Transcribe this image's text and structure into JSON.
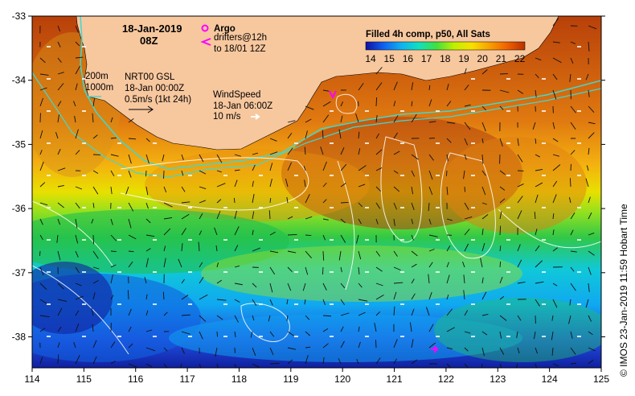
{
  "map": {
    "date": "18-Jan-2019",
    "time": "08Z",
    "x_ticks": [
      "114",
      "115",
      "116",
      "117",
      "118",
      "119",
      "120",
      "121",
      "122",
      "123",
      "124",
      "125"
    ],
    "y_ticks": [
      "-33",
      "-34",
      "-35",
      "-36",
      "-37",
      "-38"
    ],
    "colors": {
      "land": "#f7c79e",
      "contour_200m": "#40d8d0",
      "argo": "#ff00ff"
    }
  },
  "legend": {
    "title": "Filled 4h comp, p50, All Sats",
    "ticks": [
      "14",
      "15",
      "16",
      "17",
      "18",
      "19",
      "20",
      "21",
      "22"
    ],
    "gradient": [
      "#1010a0",
      "#1060f0",
      "#10b0f0",
      "#10e0c0",
      "#40e040",
      "#c0f000",
      "#f8e000",
      "#f8a000",
      "#f06000",
      "#b83000"
    ]
  },
  "annotations": {
    "argo_label": "Argo",
    "drifters_line1": "drifters@12h",
    "drifters_line2": "to 18/01 12Z",
    "depth_200": "200m",
    "depth_1000": "1000m",
    "current_line1": "NRT00 GSL",
    "current_line2": "18-Jan 00:00Z",
    "current_line3": "0.5m/s (1kt 24h)",
    "wind_line1": "WindSpeed",
    "wind_line2": "18-Jan 06:00Z",
    "wind_line3": "10 m/s"
  },
  "credit": "© IMOS 23-Jan-2019 11:59 Hobart Time"
}
